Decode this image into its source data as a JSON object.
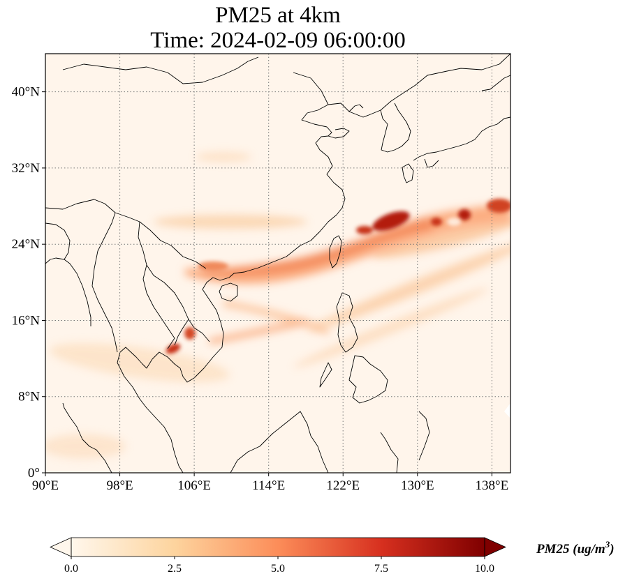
{
  "title": {
    "line1": "PM25 at 4km",
    "line2": "Time: 2024-02-09 06:00:00"
  },
  "map": {
    "lon_range": [
      90,
      140
    ],
    "lat_range": [
      0,
      44
    ],
    "x_ticks": [
      {
        "value": 90,
        "label": "90°E"
      },
      {
        "value": 98,
        "label": "98°E"
      },
      {
        "value": 106,
        "label": "106°E"
      },
      {
        "value": 114,
        "label": "114°E"
      },
      {
        "value": 122,
        "label": "122°E"
      },
      {
        "value": 130,
        "label": "130°E"
      },
      {
        "value": 138,
        "label": "138°E"
      }
    ],
    "y_ticks": [
      {
        "value": 0,
        "label": "0°"
      },
      {
        "value": 8,
        "label": "8°N"
      },
      {
        "value": 16,
        "label": "16°N"
      },
      {
        "value": 24,
        "label": "24°N"
      },
      {
        "value": 32,
        "label": "32°N"
      },
      {
        "value": 40,
        "label": "40°N"
      }
    ],
    "gridlines": "dotted",
    "background_color": "#fff5eb"
  },
  "colorbar": {
    "colormap": "OrRd",
    "min": 0.0,
    "max": 10.0,
    "extend": "both",
    "ticks": [
      {
        "value": 0.0,
        "label": "0.0"
      },
      {
        "value": 2.5,
        "label": "2.5"
      },
      {
        "value": 5.0,
        "label": "5.0"
      },
      {
        "value": 7.5,
        "label": "7.5"
      },
      {
        "value": 10.0,
        "label": "10.0"
      }
    ],
    "label_main": "PM25 (ug/m",
    "label_sup": "3",
    "label_end": ")",
    "color_stops": [
      "#fff7ec",
      "#fdd49e",
      "#fc8d59",
      "#d7301f",
      "#7f0000"
    ]
  }
}
